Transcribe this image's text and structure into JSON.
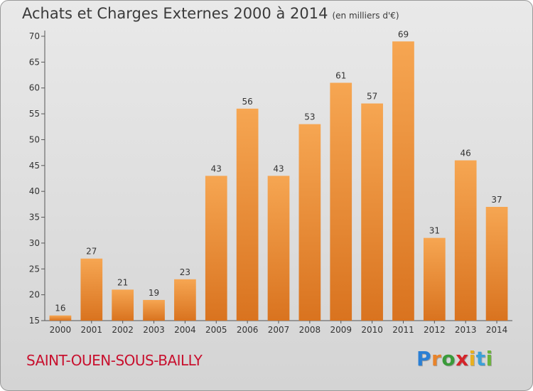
{
  "title": "Achats et Charges Externes 2000 à 2014",
  "subtitle": "(en milliers d'€)",
  "commune": "SAINT-OUEN-SOUS-BAILLY",
  "brand": {
    "letters": [
      "P",
      "r",
      "o",
      "x",
      "i",
      "t",
      "i"
    ],
    "colors": [
      "#2a7fd4",
      "#e8832a",
      "#3a9b3a",
      "#d4242a",
      "#e8b020",
      "#3aa0d8",
      "#6ab43a"
    ]
  },
  "chart_data": {
    "type": "bar",
    "categories": [
      "2000",
      "2001",
      "2002",
      "2003",
      "2004",
      "2005",
      "2006",
      "2007",
      "2008",
      "2009",
      "2010",
      "2011",
      "2012",
      "2013",
      "2014"
    ],
    "values": [
      16,
      27,
      21,
      19,
      23,
      43,
      56,
      43,
      53,
      61,
      57,
      69,
      31,
      46,
      37
    ],
    "ylim": [
      15,
      70
    ],
    "yticks": [
      15,
      20,
      25,
      30,
      35,
      40,
      45,
      50,
      55,
      60,
      65,
      70
    ],
    "grid": false,
    "bar_color": "#f0983a"
  }
}
